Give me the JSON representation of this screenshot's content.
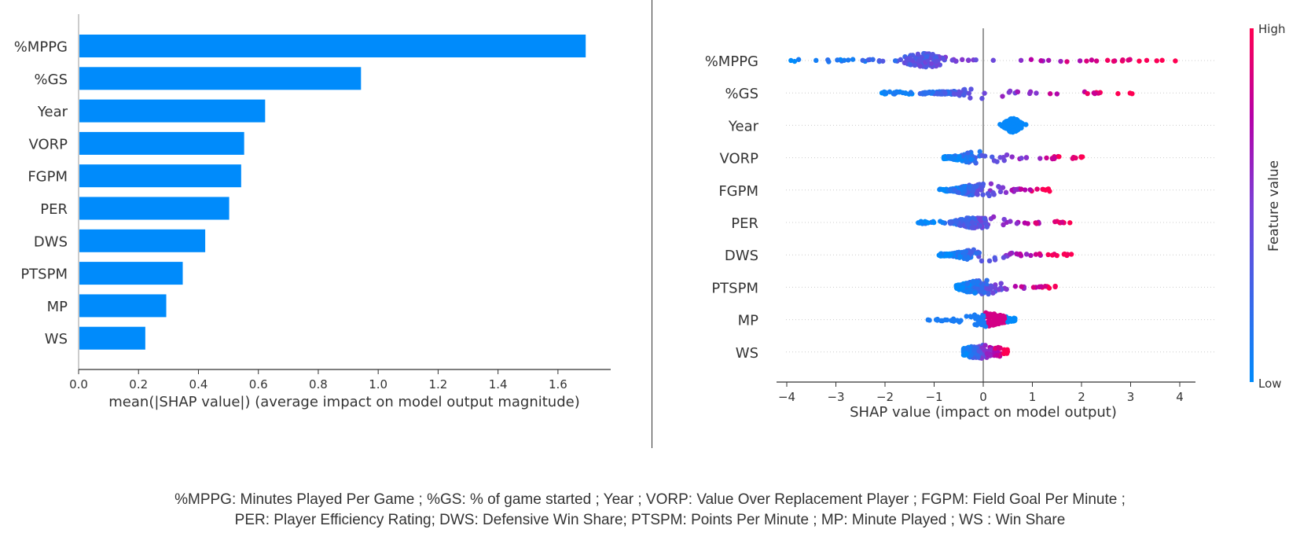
{
  "chart_data": [
    {
      "type": "bar",
      "orientation": "horizontal",
      "categories": [
        "%MPPG",
        "%GS",
        "Year",
        "VORP",
        "FGPM",
        "PER",
        "DWS",
        "PTSPM",
        "MP",
        "WS"
      ],
      "values": [
        1.69,
        0.94,
        0.62,
        0.55,
        0.54,
        0.5,
        0.42,
        0.345,
        0.29,
        0.22
      ],
      "xlabel": "mean(|SHAP value|) (average impact on model output magnitude)",
      "ylabel": "",
      "xlim": [
        0,
        1.78
      ],
      "xticks": [
        "0.0",
        "0.2",
        "0.4",
        "0.6",
        "0.8",
        "1.0",
        "1.2",
        "1.4",
        "1.6"
      ],
      "xtick_values": [
        0,
        0.2,
        0.4,
        0.6,
        0.8,
        1.0,
        1.2,
        1.4,
        1.6
      ],
      "bar_color": "#008bfb",
      "grid": false
    },
    {
      "type": "scatter",
      "subtype": "beeswarm",
      "categories": [
        "%MPPG",
        "%GS",
        "Year",
        "VORP",
        "FGPM",
        "PER",
        "DWS",
        "PTSPM",
        "MP",
        "WS"
      ],
      "ranges": [
        {
          "feature": "%MPPG",
          "min": -4.0,
          "max": 4.0,
          "low_side": "negative",
          "high_side": "positive"
        },
        {
          "feature": "%GS",
          "min": -2.1,
          "max": 3.1,
          "low_side": "negative",
          "high_side": "positive"
        },
        {
          "feature": "Year",
          "min": 0.25,
          "max": 0.95,
          "low_side": "all",
          "high_side": "none"
        },
        {
          "feature": "VORP",
          "min": -0.8,
          "max": 2.1,
          "low_side": "negative",
          "high_side": "positive"
        },
        {
          "feature": "FGPM",
          "min": -0.9,
          "max": 1.5,
          "low_side": "negative",
          "high_side": "positive"
        },
        {
          "feature": "PER",
          "min": -1.35,
          "max": 2.0,
          "low_side": "negative",
          "high_side": "positive"
        },
        {
          "feature": "DWS",
          "min": -0.9,
          "max": 1.8,
          "low_side": "negative",
          "high_side": "positive"
        },
        {
          "feature": "PTSPM",
          "min": -0.55,
          "max": 1.5,
          "low_side": "negative",
          "high_side": "positive"
        },
        {
          "feature": "MP",
          "min": -1.3,
          "max": 0.65,
          "low_side": "negative",
          "high_side": "positive"
        },
        {
          "feature": "WS",
          "min": -0.4,
          "max": 0.5,
          "low_side": "negative",
          "high_side": "positive"
        }
      ],
      "xlabel": "SHAP value (impact on model output)",
      "xlim": [
        -4.3,
        4.4
      ],
      "xticks": [
        "−4",
        "−3",
        "−2",
        "−1",
        "0",
        "1",
        "2",
        "3",
        "4"
      ],
      "xtick_values": [
        -4,
        -3,
        -2,
        -1,
        0,
        1,
        2,
        3,
        4
      ],
      "colorbar": {
        "label": "Feature value",
        "high": "High",
        "low": "Low",
        "high_color": "#ff0052",
        "low_color": "#008bfb"
      },
      "zero_line_color": "#999999"
    }
  ],
  "caption": {
    "line1": "%MPPG: Minutes Played Per Game ; %GS: % of game started ; Year ; VORP: Value Over Replacement Player ; FGPM: Field Goal Per Minute ;",
    "line2": "PER: Player Efficiency Rating; DWS: Defensive Win Share; PTSPM: Points Per Minute ; MP: Minute Played ; WS : Win Share"
  }
}
